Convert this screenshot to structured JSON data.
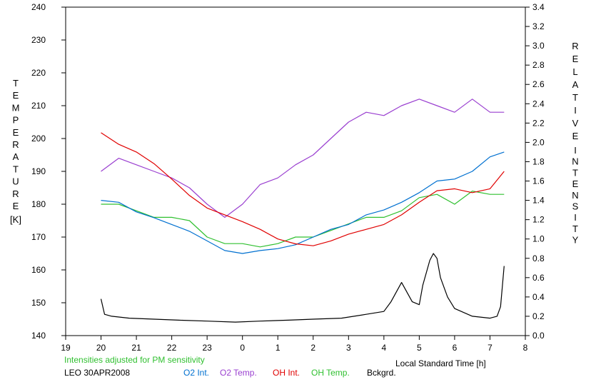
{
  "chart_data": {
    "type": "line",
    "xlabel": "Local Standard Time [h]",
    "x_ticks": [
      "19",
      "20",
      "21",
      "22",
      "23",
      "0",
      "1",
      "2",
      "3",
      "4",
      "5",
      "6",
      "7",
      "8"
    ],
    "xlim_hours": [
      19,
      32
    ],
    "y_left": {
      "label_letters": [
        "T",
        "E",
        "M",
        "P",
        "E",
        "R",
        "A",
        "T",
        "U",
        "R",
        "E"
      ],
      "unit": "[K]",
      "ylim": [
        140,
        240
      ],
      "ticks": [
        "140",
        "150",
        "160",
        "170",
        "180",
        "190",
        "200",
        "210",
        "220",
        "230",
        "240"
      ]
    },
    "y_right": {
      "label_word1": [
        "R",
        "E",
        "L",
        "A",
        "T",
        "I",
        "V",
        "E"
      ],
      "label_word2": [
        "I",
        "N",
        "T",
        "E",
        "N",
        "S",
        "I",
        "T",
        "Y"
      ],
      "ylim": [
        0,
        3.4
      ],
      "ticks": [
        "0.0",
        "0.2",
        "0.4",
        "0.6",
        "0.8",
        "1.0",
        "1.2",
        "1.4",
        "1.6",
        "1.8",
        "2.0",
        "2.2",
        "2.4",
        "2.6",
        "2.8",
        "3.0",
        "3.2",
        "3.4"
      ]
    },
    "note": "Intensities adjusted for PM sensitivity",
    "station": "LEO 30APR2008",
    "series": [
      {
        "name": "O2 Int.",
        "axis": "right",
        "color": "#0070d0",
        "x": [
          20.0,
          20.5,
          21.0,
          21.5,
          22.0,
          22.5,
          23.0,
          23.5,
          24.0,
          24.5,
          25.0,
          25.5,
          26.0,
          26.5,
          27.0,
          27.5,
          28.0,
          28.5,
          29.0,
          29.5,
          30.0,
          30.5,
          31.0,
          31.4
        ],
        "values": [
          1.4,
          1.38,
          1.28,
          1.22,
          1.15,
          1.08,
          0.98,
          0.88,
          0.85,
          0.88,
          0.9,
          0.94,
          1.02,
          1.1,
          1.15,
          1.25,
          1.3,
          1.38,
          1.48,
          1.6,
          1.62,
          1.7,
          1.85,
          1.9
        ]
      },
      {
        "name": "O2 Temp.",
        "axis": "left",
        "color": "#9a3fd0",
        "x": [
          20.0,
          20.5,
          21.0,
          21.5,
          22.0,
          22.5,
          23.0,
          23.5,
          24.0,
          24.5,
          25.0,
          25.5,
          26.0,
          26.5,
          27.0,
          27.5,
          28.0,
          28.5,
          29.0,
          29.5,
          30.0,
          30.5,
          31.0,
          31.4
        ],
        "values": [
          190,
          194,
          192,
          190,
          188,
          185,
          180,
          176,
          180,
          186,
          188,
          192,
          195,
          200,
          205,
          208,
          207,
          210,
          212,
          210,
          208,
          212,
          208,
          208
        ]
      },
      {
        "name": "OH Int.",
        "axis": "right",
        "color": "#e00000",
        "x": [
          20.0,
          20.5,
          21.0,
          21.5,
          22.0,
          22.5,
          23.0,
          23.5,
          24.0,
          24.5,
          25.0,
          25.5,
          26.0,
          26.5,
          27.0,
          27.5,
          28.0,
          28.5,
          29.0,
          29.5,
          30.0,
          30.5,
          31.0,
          31.4
        ],
        "values": [
          2.1,
          1.98,
          1.9,
          1.78,
          1.62,
          1.45,
          1.32,
          1.25,
          1.18,
          1.1,
          1.0,
          0.95,
          0.93,
          0.98,
          1.05,
          1.1,
          1.15,
          1.25,
          1.38,
          1.5,
          1.52,
          1.48,
          1.52,
          1.7
        ]
      },
      {
        "name": "OH Temp.",
        "axis": "left",
        "color": "#30c030",
        "x": [
          20.0,
          20.5,
          21.0,
          21.5,
          22.0,
          22.5,
          23.0,
          23.5,
          24.0,
          24.5,
          25.0,
          25.5,
          26.0,
          26.5,
          27.0,
          27.5,
          28.0,
          28.5,
          29.0,
          29.5,
          30.0,
          30.5,
          31.0,
          31.4
        ],
        "values": [
          180,
          180,
          178,
          176,
          176,
          175,
          170,
          168,
          168,
          167,
          168,
          170,
          170,
          172,
          174,
          176,
          176,
          178,
          182,
          183,
          180,
          184,
          183,
          183
        ]
      },
      {
        "name": "Bckgrd.",
        "axis": "right",
        "color": "#000000",
        "x": [
          20.0,
          20.1,
          20.3,
          20.8,
          21.5,
          22.2,
          23.0,
          23.8,
          24.5,
          25.3,
          26.0,
          26.8,
          27.5,
          28.0,
          28.2,
          28.5,
          28.8,
          29.0,
          29.1,
          29.3,
          29.4,
          29.5,
          29.6,
          29.8,
          30.0,
          30.5,
          31.0,
          31.2,
          31.3,
          31.4
        ],
        "values": [
          0.38,
          0.22,
          0.2,
          0.18,
          0.17,
          0.16,
          0.15,
          0.14,
          0.15,
          0.16,
          0.17,
          0.18,
          0.22,
          0.25,
          0.35,
          0.55,
          0.35,
          0.32,
          0.52,
          0.78,
          0.85,
          0.8,
          0.6,
          0.4,
          0.28,
          0.2,
          0.18,
          0.2,
          0.3,
          0.72
        ]
      }
    ],
    "grid": false,
    "legend": "bottom"
  }
}
